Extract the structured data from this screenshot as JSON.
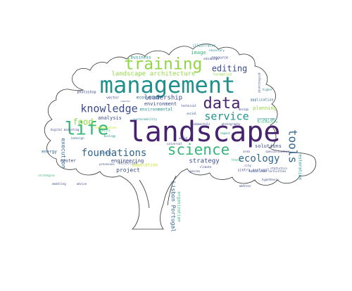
{
  "palette": {
    "purple": "#46236e",
    "indigo": "#3b4a8a",
    "blue": "#31668d",
    "teal": "#21908d",
    "green": "#35b779",
    "lime": "#8fd744",
    "yellow": "#c8e020",
    "outline": "#333333"
  },
  "words": [
    {
      "text": "landscape",
      "color": "purple"
    },
    {
      "text": "management",
      "color": "teal"
    },
    {
      "text": "training",
      "color": "lime"
    },
    {
      "text": "data",
      "color": "purple"
    },
    {
      "text": "life",
      "color": "green"
    },
    {
      "text": "science",
      "color": "green"
    },
    {
      "text": "knowledge",
      "color": "indigo"
    },
    {
      "text": "service",
      "color": "teal"
    },
    {
      "text": "foundations",
      "color": "blue"
    },
    {
      "text": "ecology",
      "color": "blue"
    },
    {
      "text": "tools",
      "color": "blue"
    },
    {
      "text": "food",
      "color": "lime"
    },
    {
      "text": "editing",
      "color": "indigo"
    },
    {
      "text": "landscape architecture",
      "color": "lime"
    },
    {
      "text": "leadership",
      "color": "indigo"
    },
    {
      "text": "strategy",
      "color": "indigo"
    },
    {
      "text": "environment",
      "color": "indigo"
    },
    {
      "text": "environmental",
      "color": "teal"
    },
    {
      "text": "analysis",
      "color": "indigo"
    },
    {
      "text": "engineering",
      "color": "indigo"
    },
    {
      "text": "project",
      "color": "indigo"
    },
    {
      "text": "solutions",
      "color": "indigo"
    },
    {
      "text": "planning",
      "color": "lime"
    },
    {
      "text": "program",
      "color": "teal"
    },
    {
      "text": "execution",
      "color": "blue"
    },
    {
      "text": "energy",
      "color": "blue"
    },
    {
      "text": "master",
      "color": "indigo"
    },
    {
      "text": "Lisbon Portugal",
      "color": "blue"
    },
    {
      "text": "organization",
      "color": "green"
    },
    {
      "text": "image",
      "color": "green"
    },
    {
      "text": "business",
      "color": "teal"
    },
    {
      "text": "formation",
      "color": "lime"
    },
    {
      "text": "application",
      "color": "blue"
    },
    {
      "text": "resource",
      "color": "indigo"
    },
    {
      "text": "ecosystem",
      "color": "blue"
    },
    {
      "text": "population",
      "color": "yellow"
    },
    {
      "text": "restoration",
      "color": "teal"
    },
    {
      "text": "selection",
      "color": "indigo"
    },
    {
      "text": "sustainability",
      "color": "teal"
    },
    {
      "text": "illustrator",
      "color": "teal"
    },
    {
      "text": "photoshop",
      "color": "indigo"
    },
    {
      "text": "indesign",
      "color": "blue"
    },
    {
      "text": "digital marketing",
      "color": "indigo"
    },
    {
      "text": "vector",
      "color": "indigo"
    },
    {
      "text": "methods",
      "color": "blue"
    },
    {
      "text": "city",
      "color": "indigo"
    },
    {
      "text": "design",
      "color": "indigo"
    },
    {
      "text": "specialization",
      "color": "indigo"
    },
    {
      "text": "statistics",
      "color": "indigo"
    },
    {
      "text": "sintra portugal",
      "color": "indigo"
    },
    {
      "text": "architecture",
      "color": "green"
    },
    {
      "text": "climate",
      "color": "indigo"
    },
    {
      "text": "fundamentals",
      "color": "indigo"
    },
    {
      "text": "photography",
      "color": "indigo"
    },
    {
      "text": "impact",
      "color": "teal"
    },
    {
      "text": "computer",
      "color": "indigo"
    },
    {
      "text": "higher",
      "color": "teal"
    },
    {
      "text": "professional",
      "color": "indigo"
    },
    {
      "text": "technical",
      "color": "indigo"
    },
    {
      "text": "edinburgh",
      "color": "indigo"
    },
    {
      "text": "educational activities",
      "color": "indigo"
    },
    {
      "text": "hypothesis",
      "color": "indigo"
    },
    {
      "text": "address",
      "color": "indigo"
    },
    {
      "text": "advice",
      "color": "indigo"
    },
    {
      "text": "modeling",
      "color": "indigo"
    },
    {
      "text": "strategies",
      "color": "green"
    },
    {
      "text": "processes",
      "color": "indigo"
    },
    {
      "text": "social",
      "color": "indigo"
    },
    {
      "text": "area",
      "color": "indigo"
    },
    {
      "text": "skills",
      "color": "green"
    },
    {
      "text": "communication",
      "color": "yellow"
    },
    {
      "text": "biology",
      "color": "teal"
    },
    {
      "text": "world",
      "color": "indigo"
    },
    {
      "text": "necessary",
      "color": "teal"
    },
    {
      "text": "universal",
      "color": "indigo"
    },
    {
      "text": "theory",
      "color": "green"
    },
    {
      "text": "species",
      "color": "indigo"
    }
  ]
}
